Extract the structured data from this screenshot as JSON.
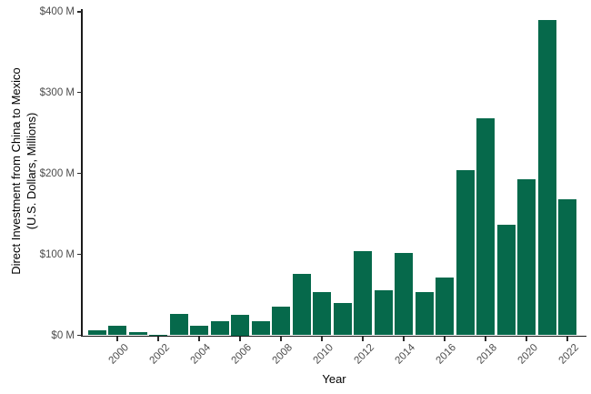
{
  "chart_data": {
    "type": "bar",
    "title": "",
    "xlabel": "Year",
    "ylabel_line1": "Direct Investment from China to Mexico",
    "ylabel_line2": "(U.S. Dollars, Millions)",
    "categories": [
      1999,
      2000,
      2001,
      2002,
      2003,
      2004,
      2005,
      2006,
      2007,
      2008,
      2009,
      2010,
      2011,
      2012,
      2013,
      2014,
      2015,
      2016,
      2017,
      2018,
      2019,
      2020,
      2021,
      2022
    ],
    "values": [
      6,
      12,
      4,
      1,
      26,
      12,
      18,
      25,
      17,
      35,
      76,
      53,
      40,
      104,
      56,
      102,
      53,
      72,
      204,
      268,
      137,
      193,
      390,
      168
    ],
    "series_name": "Direct Investment from China to Mexico (U.S. Dollars, Millions)",
    "ylim": [
      0,
      400
    ],
    "y_ticks": [
      {
        "value": 0,
        "label": "$0 M"
      },
      {
        "value": 100,
        "label": "$100 M"
      },
      {
        "value": 200,
        "label": "$200 M"
      },
      {
        "value": 300,
        "label": "$300 M"
      },
      {
        "value": 400,
        "label": "$400 M"
      }
    ],
    "x_tick_years": [
      2000,
      2002,
      2004,
      2006,
      2008,
      2010,
      2012,
      2014,
      2016,
      2018,
      2020,
      2022
    ],
    "grid": false,
    "legend": false,
    "colors": {
      "bar": "#06694B",
      "axis_line": "#1a1a1a",
      "tick_mark": "#2b2b2b",
      "tick_label": "#4d4d4d",
      "axis_title": "#000000",
      "background": "#ffffff"
    }
  }
}
